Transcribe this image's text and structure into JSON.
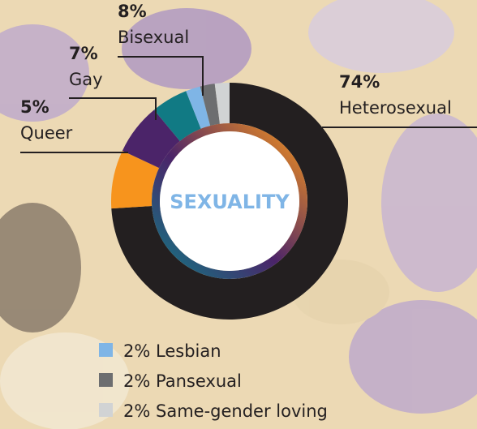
{
  "chart_data": {
    "type": "pie",
    "donut": true,
    "center_label": "SEXUALITY",
    "categories": [
      "Heterosexual",
      "Bisexual",
      "Gay",
      "Queer",
      "Lesbian",
      "Pansexual",
      "Same-gender loving"
    ],
    "values": [
      74,
      8,
      7,
      5,
      2,
      2,
      2
    ],
    "value_labels": [
      "74%",
      "8%",
      "7%",
      "5%",
      "2%",
      "2%",
      "2%"
    ],
    "colors": [
      "#231f20",
      "#f7941d",
      "#4b2469",
      "#117a84",
      "#7fb5e6",
      "#6d6e70",
      "#d1d3d4"
    ]
  }
}
